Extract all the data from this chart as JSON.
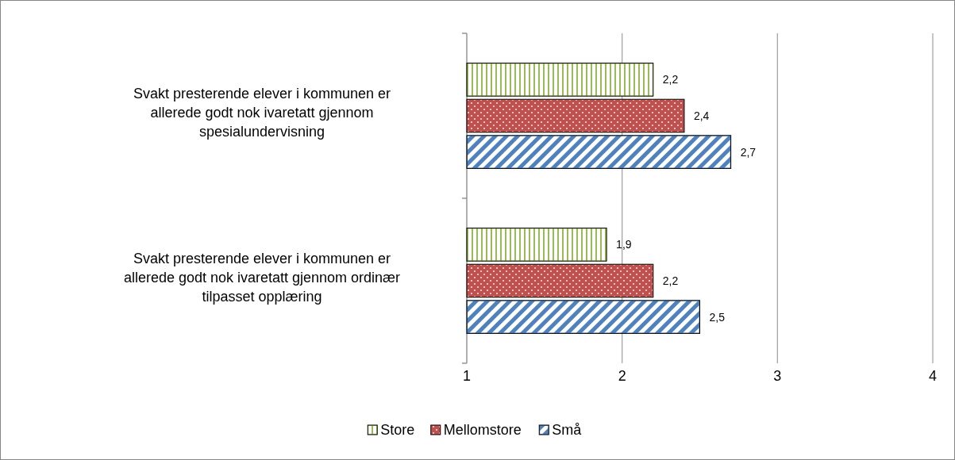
{
  "chart_data": {
    "type": "bar",
    "orientation": "horizontal",
    "categories": [
      "Svakt presterende elever i kommunen er allerede godt nok ivaretatt gjennom spesialundervisning",
      "Svakt presterende elever i kommunen er allerede godt nok ivaretatt gjennom ordinær tilpasset opplæring"
    ],
    "series": [
      {
        "name": "Store",
        "color": "#9bbb59",
        "values": [
          2.2,
          1.9
        ],
        "value_labels": [
          "2,2",
          "1,9"
        ]
      },
      {
        "name": "Mellomstore",
        "color": "#c0504d",
        "values": [
          2.4,
          2.2
        ],
        "value_labels": [
          "2,4",
          "2,2"
        ]
      },
      {
        "name": "Små",
        "color": "#4f81bd",
        "values": [
          2.7,
          2.5
        ],
        "value_labels": [
          "2,7",
          "2,5"
        ]
      }
    ],
    "xlim": [
      1,
      4
    ],
    "xticks": [
      1,
      2,
      3,
      4
    ],
    "grid": "x",
    "legend": "bottom"
  }
}
